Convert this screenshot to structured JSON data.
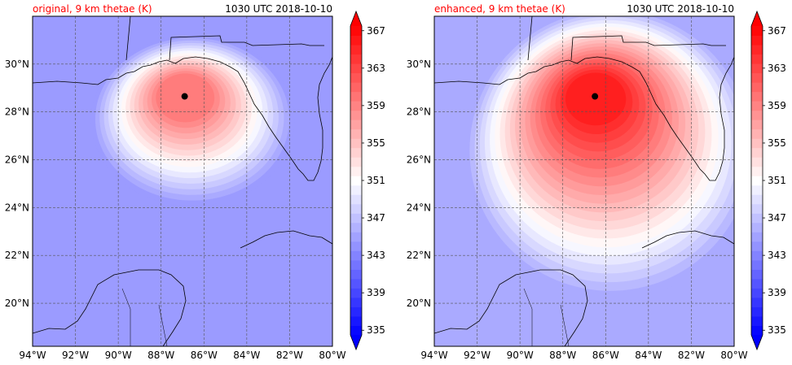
{
  "chart_data": [
    {
      "type": "heatmap",
      "title": "original, 9 km thetae (K)",
      "valid_time": "1030 UTC 2018-10-10",
      "xlim": [
        -94,
        -80
      ],
      "ylim": [
        18.2,
        32
      ],
      "x_ticks": [
        -94,
        -92,
        -90,
        -88,
        -86,
        -84,
        -82,
        -80
      ],
      "x_tick_labels": [
        "94°W",
        "92°W",
        "90°W",
        "88°W",
        "86°W",
        "84°W",
        "82°W",
        "80°W"
      ],
      "y_ticks": [
        20,
        22,
        24,
        26,
        28,
        30
      ],
      "y_tick_labels": [
        "20°N",
        "22°N",
        "24°N",
        "26°N",
        "28°N",
        "30°N"
      ],
      "grid": true,
      "background_thetae": 345,
      "storm_center": {
        "lon": -86.9,
        "lat": 28.65,
        "peak_thetae": 360
      },
      "colorbar": {
        "levels": [
          335,
          336,
          337,
          338,
          339,
          340,
          341,
          342,
          343,
          344,
          345,
          346,
          347,
          348,
          349,
          350,
          351,
          352,
          353,
          354,
          355,
          356,
          357,
          358,
          359,
          360,
          361,
          362,
          363,
          364,
          365,
          366,
          367,
          368
        ],
        "tick_values": [
          335,
          339,
          343,
          347,
          351,
          355,
          359,
          363,
          367
        ],
        "tick_labels": [
          "335",
          "339",
          "343",
          "347",
          "351",
          "355",
          "359",
          "363",
          "367"
        ],
        "extend": "both",
        "cmap": "bwr"
      }
    },
    {
      "type": "heatmap",
      "title": "enhanced, 9 km thetae (K)",
      "valid_time": "1030 UTC 2018-10-10",
      "xlim": [
        -94,
        -80
      ],
      "ylim": [
        18.2,
        32
      ],
      "x_ticks": [
        -94,
        -92,
        -90,
        -88,
        -86,
        -84,
        -82,
        -80
      ],
      "x_tick_labels": [
        "94°W",
        "92°W",
        "90°W",
        "88°W",
        "86°W",
        "84°W",
        "82°W",
        "80°W"
      ],
      "y_ticks": [
        20,
        22,
        24,
        26,
        28,
        30
      ],
      "y_tick_labels": [
        "20°N",
        "22°N",
        "24°N",
        "26°N",
        "28°N",
        "30°N"
      ],
      "grid": true,
      "background_thetae": 346,
      "storm_center": {
        "lon": -86.5,
        "lat": 28.65,
        "peak_thetae": 366
      },
      "colorbar": {
        "levels": [
          335,
          336,
          337,
          338,
          339,
          340,
          341,
          342,
          343,
          344,
          345,
          346,
          347,
          348,
          349,
          350,
          351,
          352,
          353,
          354,
          355,
          356,
          357,
          358,
          359,
          360,
          361,
          362,
          363,
          364,
          365,
          366,
          367,
          368
        ],
        "tick_values": [
          335,
          339,
          343,
          347,
          351,
          355,
          359,
          363,
          367
        ],
        "tick_labels": [
          "335",
          "339",
          "343",
          "347",
          "351",
          "355",
          "359",
          "363",
          "367"
        ],
        "extend": "both",
        "cmap": "bwr"
      }
    }
  ],
  "colors": {
    "low": "#0000ff",
    "mid": "#ffffff",
    "high": "#ff0000",
    "title_red": "#ff0000",
    "storm_dot": "#000000"
  }
}
